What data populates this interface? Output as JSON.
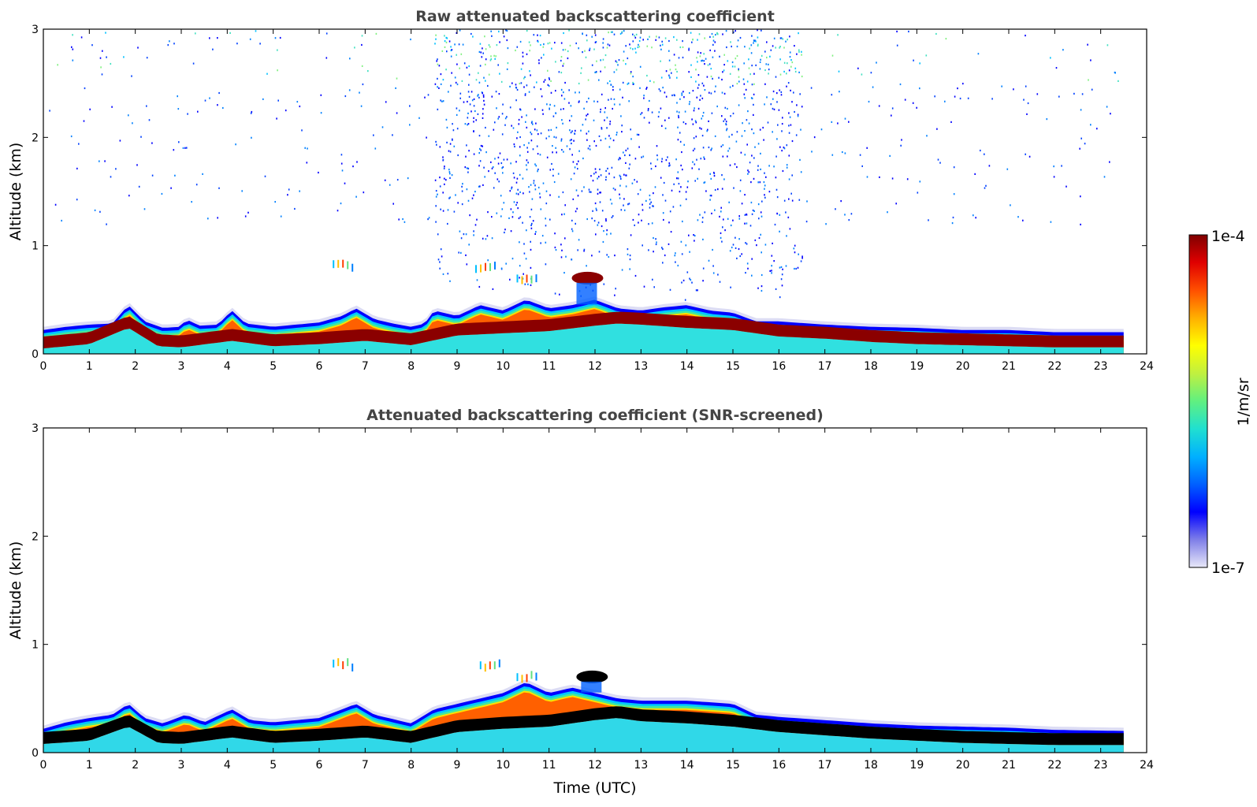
{
  "chart_data": [
    {
      "type": "heatmap",
      "title": "Raw attenuated backscattering coefficient",
      "xlabel": "",
      "ylabel": "Altitude (km)",
      "xlim": [
        0,
        24
      ],
      "ylim": [
        0,
        3
      ],
      "x_ticks": [
        "0",
        "1",
        "2",
        "3",
        "4",
        "5",
        "6",
        "7",
        "8",
        "9",
        "10",
        "11",
        "12",
        "13",
        "14",
        "15",
        "16",
        "17",
        "18",
        "19",
        "20",
        "21",
        "22",
        "23",
        "24"
      ],
      "y_ticks": [
        "0",
        "1",
        "2",
        "3"
      ],
      "data_end_hour": 23.5,
      "layer_top_km": [
        [
          0,
          0.22
        ],
        [
          0.5,
          0.25
        ],
        [
          1,
          0.27
        ],
        [
          1.5,
          0.28
        ],
        [
          1.85,
          0.45
        ],
        [
          2.2,
          0.3
        ],
        [
          2.6,
          0.24
        ],
        [
          3,
          0.25
        ],
        [
          3.1,
          0.32
        ],
        [
          3.4,
          0.26
        ],
        [
          3.8,
          0.27
        ],
        [
          4.1,
          0.4
        ],
        [
          4.4,
          0.28
        ],
        [
          5,
          0.25
        ],
        [
          5.5,
          0.27
        ],
        [
          6,
          0.29
        ],
        [
          6.5,
          0.35
        ],
        [
          6.8,
          0.42
        ],
        [
          7.2,
          0.32
        ],
        [
          7.6,
          0.28
        ],
        [
          8,
          0.25
        ],
        [
          8.3,
          0.28
        ],
        [
          8.5,
          0.4
        ],
        [
          9,
          0.35
        ],
        [
          9.5,
          0.45
        ],
        [
          10,
          0.4
        ],
        [
          10.5,
          0.5
        ],
        [
          11,
          0.42
        ],
        [
          11.5,
          0.45
        ],
        [
          12,
          0.5
        ],
        [
          12.5,
          0.42
        ],
        [
          13,
          0.4
        ],
        [
          13.5,
          0.43
        ],
        [
          14,
          0.45
        ],
        [
          14.5,
          0.4
        ],
        [
          15,
          0.38
        ],
        [
          15.5,
          0.3
        ],
        [
          16,
          0.3
        ],
        [
          17,
          0.27
        ],
        [
          18,
          0.25
        ],
        [
          19,
          0.24
        ],
        [
          20,
          0.22
        ],
        [
          21,
          0.22
        ],
        [
          22,
          0.2
        ],
        [
          23,
          0.2
        ],
        [
          23.5,
          0.2
        ]
      ],
      "layer_core_km": [
        [
          0,
          0.11
        ],
        [
          1,
          0.15
        ],
        [
          1.85,
          0.3
        ],
        [
          2.5,
          0.13
        ],
        [
          3,
          0.12
        ],
        [
          4.1,
          0.18
        ],
        [
          5,
          0.13
        ],
        [
          6,
          0.15
        ],
        [
          7,
          0.18
        ],
        [
          8,
          0.14
        ],
        [
          9,
          0.23
        ],
        [
          10,
          0.25
        ],
        [
          11,
          0.27
        ],
        [
          12,
          0.32
        ],
        [
          12.5,
          0.34
        ],
        [
          13,
          0.33
        ],
        [
          14,
          0.3
        ],
        [
          15,
          0.28
        ],
        [
          16,
          0.22
        ],
        [
          17,
          0.2
        ],
        [
          18,
          0.17
        ],
        [
          19,
          0.15
        ],
        [
          20,
          0.14
        ],
        [
          21,
          0.13
        ],
        [
          22,
          0.12
        ],
        [
          23.5,
          0.12
        ]
      ],
      "elevated_clouds": [
        {
          "hour": 11.7,
          "altitude_km": 0.7,
          "note": "strong cloud echo near 11.5-12.2 UTC"
        },
        {
          "hour": 6.5,
          "altitude_km": 0.8
        },
        {
          "hour": 9.6,
          "altitude_km": 0.8
        },
        {
          "hour": 10.5,
          "altitude_km": 0.7
        }
      ],
      "noise_region": {
        "hours": [
          8.5,
          16.5
        ],
        "altitude_km": [
          0.5,
          3.0
        ],
        "note": "daytime noise above boundary layer"
      }
    },
    {
      "type": "heatmap",
      "title": "Attenuated backscattering coefficient (SNR-screened)",
      "xlabel": "Time (UTC)",
      "ylabel": "Altitude (km)",
      "xlim": [
        0,
        24
      ],
      "ylim": [
        0,
        3
      ],
      "x_ticks": [
        "0",
        "1",
        "2",
        "3",
        "4",
        "5",
        "6",
        "7",
        "8",
        "9",
        "10",
        "11",
        "12",
        "13",
        "14",
        "15",
        "16",
        "17",
        "18",
        "19",
        "20",
        "21",
        "22",
        "23",
        "24"
      ],
      "y_ticks": [
        "0",
        "1",
        "2",
        "3"
      ],
      "data_end_hour": 23.5,
      "layer_top_km": [
        [
          0,
          0.22
        ],
        [
          0.5,
          0.28
        ],
        [
          1,
          0.32
        ],
        [
          1.5,
          0.35
        ],
        [
          1.85,
          0.45
        ],
        [
          2.2,
          0.32
        ],
        [
          2.6,
          0.27
        ],
        [
          3.1,
          0.35
        ],
        [
          3.5,
          0.28
        ],
        [
          4.1,
          0.4
        ],
        [
          4.5,
          0.3
        ],
        [
          5,
          0.28
        ],
        [
          5.5,
          0.3
        ],
        [
          6,
          0.32
        ],
        [
          6.5,
          0.4
        ],
        [
          6.8,
          0.45
        ],
        [
          7.2,
          0.35
        ],
        [
          8,
          0.27
        ],
        [
          8.5,
          0.4
        ],
        [
          9,
          0.45
        ],
        [
          9.5,
          0.5
        ],
        [
          10,
          0.55
        ],
        [
          10.5,
          0.65
        ],
        [
          11,
          0.55
        ],
        [
          11.5,
          0.6
        ],
        [
          12,
          0.55
        ],
        [
          12.5,
          0.5
        ],
        [
          13,
          0.48
        ],
        [
          14,
          0.48
        ],
        [
          15,
          0.45
        ],
        [
          15.5,
          0.35
        ],
        [
          16,
          0.33
        ],
        [
          17,
          0.3
        ],
        [
          18,
          0.27
        ],
        [
          19,
          0.25
        ],
        [
          20,
          0.24
        ],
        [
          21,
          0.23
        ],
        [
          22,
          0.21
        ],
        [
          23.5,
          0.2
        ]
      ],
      "layer_core_km": [
        [
          0,
          0.14
        ],
        [
          1,
          0.17
        ],
        [
          1.85,
          0.3
        ],
        [
          2.5,
          0.15
        ],
        [
          3,
          0.14
        ],
        [
          4.1,
          0.2
        ],
        [
          5,
          0.15
        ],
        [
          6,
          0.17
        ],
        [
          7,
          0.2
        ],
        [
          8,
          0.15
        ],
        [
          9,
          0.25
        ],
        [
          10,
          0.28
        ],
        [
          11,
          0.3
        ],
        [
          12,
          0.36
        ],
        [
          12.5,
          0.38
        ],
        [
          13,
          0.35
        ],
        [
          14,
          0.33
        ],
        [
          15,
          0.3
        ],
        [
          16,
          0.25
        ],
        [
          17,
          0.22
        ],
        [
          18,
          0.19
        ],
        [
          19,
          0.17
        ],
        [
          20,
          0.15
        ],
        [
          21,
          0.14
        ],
        [
          22,
          0.13
        ],
        [
          23.5,
          0.13
        ]
      ],
      "elevated_clouds": [
        {
          "hour": 11.8,
          "altitude_km": 0.7,
          "note": "cloud echo (black core) near 11.6-12.2 UTC"
        },
        {
          "hour": 6.5,
          "altitude_km": 0.8
        },
        {
          "hour": 9.7,
          "altitude_km": 0.8
        },
        {
          "hour": 10.5,
          "altitude_km": 0.7
        }
      ]
    }
  ],
  "colorbar": {
    "max_label": "1e-4",
    "min_label": "1e-7",
    "units_label": "1/m/sr",
    "stops": [
      "#e8e8f8",
      "#7f7fe8",
      "#0000ff",
      "#0060ff",
      "#00b0ff",
      "#20e0d0",
      "#60f080",
      "#c0f040",
      "#ffff00",
      "#ffb000",
      "#ff5000",
      "#e00000",
      "#800000"
    ]
  }
}
